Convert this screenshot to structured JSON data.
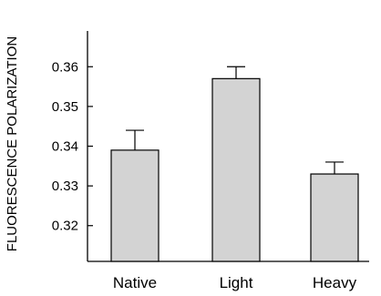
{
  "chart_data": {
    "type": "bar",
    "title": "",
    "xlabel": "",
    "ylabel": "FLUORESCENCE POLARIZATION",
    "categories": [
      "Native",
      "Light",
      "Heavy"
    ],
    "values": [
      0.339,
      0.357,
      0.333
    ],
    "errors": [
      0.005,
      0.003,
      0.003
    ],
    "ylim": [
      0.311,
      0.369
    ],
    "yticks": [
      "0.32",
      "0.33",
      "0.34",
      "0.35",
      "0.36"
    ],
    "ytick_values": [
      0.32,
      0.33,
      0.34,
      0.35,
      0.36
    ],
    "grid": false,
    "legend": "none",
    "bar_fill": "#d3d3d3",
    "bar_stroke": "#000000"
  }
}
